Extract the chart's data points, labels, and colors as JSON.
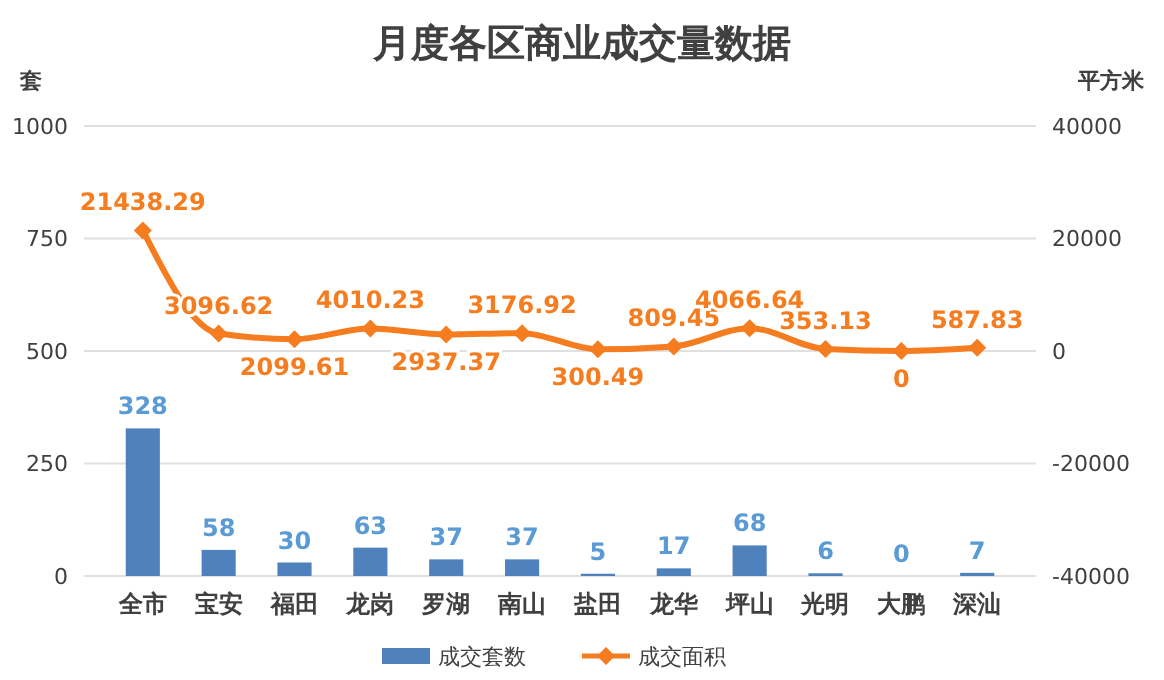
{
  "chart_data": {
    "type": "bar",
    "title": "月度各区商业成交量数据",
    "ylabel": "套",
    "y2label": "平方米",
    "categories": [
      "全市",
      "宝安",
      "福田",
      "龙岗",
      "罗湖",
      "南山",
      "盐田",
      "龙华",
      "坪山",
      "光明",
      "大鹏",
      "深汕"
    ],
    "series": [
      {
        "name": "成交套数",
        "color": "#4f81bd",
        "values": [
          328,
          58,
          30,
          63,
          37,
          37,
          5,
          17,
          68,
          6,
          0,
          7
        ]
      },
      {
        "name": "成交面积",
        "type": "line",
        "axis": "y2",
        "color": "#f57c1f",
        "marker": "diamond",
        "values": [
          21438.29,
          3096.62,
          2099.61,
          4010.23,
          2937.37,
          3176.92,
          300.49,
          809.45,
          4066.64,
          353.13,
          0,
          587.83
        ]
      }
    ],
    "ylim": [
      0,
      1000
    ],
    "yticks": [
      0,
      250,
      500,
      750,
      1000
    ],
    "y2lim": [
      -40000,
      40000
    ],
    "y2ticks": [
      -40000,
      -20000,
      0,
      20000,
      40000
    ],
    "grid": "y",
    "legend": "bottom",
    "data_labels": true
  }
}
